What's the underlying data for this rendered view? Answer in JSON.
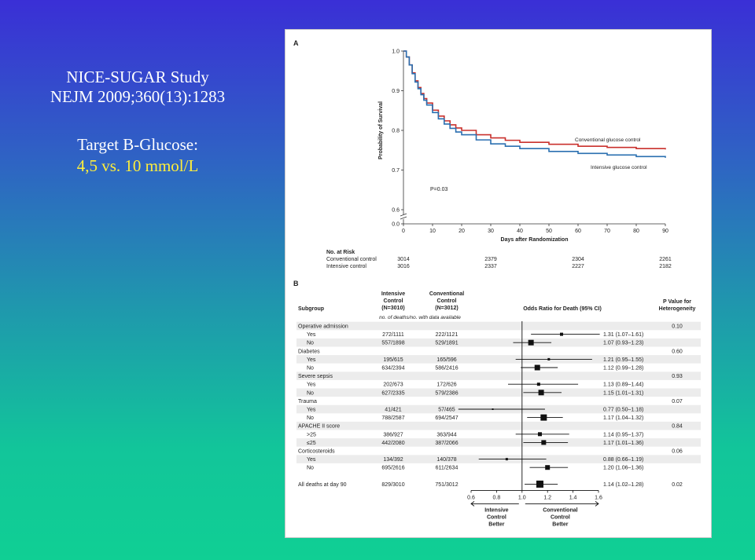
{
  "slide": {
    "title_line1": "NICE-SUGAR Study",
    "title_line2": "NEJM 2009;360(13):1283",
    "target_line1": "Target B-Glucose:",
    "target_line2": "4,5 vs. 10 mmol/L"
  },
  "colors": {
    "conventional": "#c9302c",
    "intensive": "#2a6fb0",
    "text_yellow": "#ffef3a"
  },
  "chart_data": [
    {
      "type": "line",
      "panel_label": "A",
      "ylabel": "Probability of Survival",
      "xlabel": "Days after Randomization",
      "xlim": [
        0,
        90
      ],
      "ylim": [
        0.6,
        1.0
      ],
      "y_axis_break": true,
      "yticks": [
        "0.0",
        "0.6",
        "0.7",
        "0.8",
        "0.9",
        "1.0"
      ],
      "xticks": [
        0,
        10,
        20,
        30,
        40,
        50,
        60,
        70,
        80,
        90
      ],
      "annotation": "P=0.03",
      "series": [
        {
          "name": "Conventional glucose control",
          "x": [
            0,
            1,
            2,
            3,
            4,
            5,
            6,
            7,
            8,
            10,
            12,
            14,
            16,
            18,
            20,
            25,
            30,
            35,
            40,
            50,
            60,
            70,
            80,
            90
          ],
          "y": [
            1.0,
            0.985,
            0.965,
            0.945,
            0.925,
            0.908,
            0.893,
            0.88,
            0.869,
            0.851,
            0.836,
            0.824,
            0.814,
            0.806,
            0.8,
            0.789,
            0.781,
            0.775,
            0.77,
            0.765,
            0.76,
            0.757,
            0.754,
            0.752
          ]
        },
        {
          "name": "Intensive glucose control",
          "x": [
            0,
            1,
            2,
            3,
            4,
            5,
            6,
            7,
            8,
            10,
            12,
            14,
            16,
            18,
            20,
            25,
            30,
            35,
            40,
            50,
            60,
            70,
            80,
            90
          ],
          "y": [
            1.0,
            0.985,
            0.965,
            0.943,
            0.922,
            0.905,
            0.89,
            0.876,
            0.864,
            0.845,
            0.829,
            0.816,
            0.805,
            0.796,
            0.789,
            0.776,
            0.766,
            0.76,
            0.754,
            0.747,
            0.742,
            0.738,
            0.734,
            0.731
          ]
        }
      ],
      "at_risk": {
        "title": "No. at Risk",
        "timepoints": [
          0,
          30,
          60,
          90
        ],
        "rows": [
          {
            "label": "Conventional control",
            "values": [
              "3014",
              "2379",
              "2304",
              "2261"
            ]
          },
          {
            "label": "Intensive control",
            "values": [
              "3016",
              "2337",
              "2227",
              "2182"
            ]
          }
        ]
      }
    },
    {
      "type": "forest",
      "panel_label": "B",
      "headers": {
        "subgroup": "Subgroup",
        "intensive": [
          "Intensive",
          "Control",
          "(N=3010)"
        ],
        "conventional": [
          "Conventional",
          "Control",
          "(N=3012)"
        ],
        "subheader": "no. of deaths/no. with data available",
        "or": "Odds Ratio for Death (95% CI)",
        "p": [
          "P Value for",
          "Heterogeneity"
        ]
      },
      "xlim": [
        0.6,
        1.6
      ],
      "xticks": [
        "0.6",
        "0.8",
        "1.0",
        "1.2",
        "1.4",
        "1.6"
      ],
      "footer_left": [
        "Intensive",
        "Control",
        "Better"
      ],
      "footer_right": [
        "Conventional",
        "Control",
        "Better"
      ],
      "rows": [
        {
          "kind": "group",
          "label": "Operative admission",
          "p": "0.10"
        },
        {
          "kind": "item",
          "label": "Yes",
          "intensive": "272/1111",
          "conventional": "222/1121",
          "or": 1.31,
          "lo": 1.07,
          "hi": 1.61,
          "ci": "1.31 (1.07–1.61)",
          "size": 4
        },
        {
          "kind": "item",
          "label": "No",
          "intensive": "557/1898",
          "conventional": "529/1891",
          "or": 1.07,
          "lo": 0.93,
          "hi": 1.23,
          "ci": "1.07 (0.93–1.23)",
          "size": 7
        },
        {
          "kind": "group",
          "label": "Diabetes",
          "p": "0.60"
        },
        {
          "kind": "item",
          "label": "Yes",
          "intensive": "195/615",
          "conventional": "165/596",
          "or": 1.21,
          "lo": 0.95,
          "hi": 1.55,
          "ci": "1.21 (0.95–1.55)",
          "size": 3
        },
        {
          "kind": "item",
          "label": "No",
          "intensive": "634/2394",
          "conventional": "586/2416",
          "or": 1.12,
          "lo": 0.99,
          "hi": 1.28,
          "ci": "1.12 (0.99–1.28)",
          "size": 7
        },
        {
          "kind": "group",
          "label": "Severe sepsis",
          "p": "0.93"
        },
        {
          "kind": "item",
          "label": "Yes",
          "intensive": "202/673",
          "conventional": "172/626",
          "or": 1.13,
          "lo": 0.89,
          "hi": 1.44,
          "ci": "1.13 (0.89–1.44)",
          "size": 4
        },
        {
          "kind": "item",
          "label": "No",
          "intensive": "627/2335",
          "conventional": "579/2386",
          "or": 1.15,
          "lo": 1.01,
          "hi": 1.31,
          "ci": "1.15 (1.01–1.31)",
          "size": 7
        },
        {
          "kind": "group",
          "label": "Trauma",
          "p": "0.07"
        },
        {
          "kind": "item",
          "label": "Yes",
          "intensive": "41/421",
          "conventional": "57/465",
          "or": 0.77,
          "lo": 0.5,
          "hi": 1.18,
          "ci": "0.77 (0.50–1.18)",
          "size": 2
        },
        {
          "kind": "item",
          "label": "No",
          "intensive": "788/2587",
          "conventional": "694/2547",
          "or": 1.17,
          "lo": 1.04,
          "hi": 1.32,
          "ci": "1.17 (1.04–1.32)",
          "size": 8
        },
        {
          "kind": "group",
          "label": "APACHE II score",
          "p": "0.84"
        },
        {
          "kind": "item",
          "label": ">25",
          "intensive": "386/927",
          "conventional": "363/944",
          "or": 1.14,
          "lo": 0.95,
          "hi": 1.37,
          "ci": "1.14 (0.95–1.37)",
          "size": 5
        },
        {
          "kind": "item",
          "label": "≤25",
          "intensive": "442/2080",
          "conventional": "387/2066",
          "or": 1.17,
          "lo": 1.01,
          "hi": 1.36,
          "ci": "1.17 (1.01–1.36)",
          "size": 6
        },
        {
          "kind": "group",
          "label": "Corticosteroids",
          "p": "0.06"
        },
        {
          "kind": "item",
          "label": "Yes",
          "intensive": "134/392",
          "conventional": "140/378",
          "or": 0.88,
          "lo": 0.66,
          "hi": 1.19,
          "ci": "0.88 (0.66–1.19)",
          "size": 3
        },
        {
          "kind": "item",
          "label": "No",
          "intensive": "695/2616",
          "conventional": "611/2634",
          "or": 1.2,
          "lo": 1.06,
          "hi": 1.36,
          "ci": "1.20 (1.06–1.36)",
          "size": 6
        },
        {
          "kind": "gap"
        },
        {
          "kind": "total",
          "label": "All deaths at day 90",
          "intensive": "829/3010",
          "conventional": "751/3012",
          "or": 1.14,
          "lo": 1.02,
          "hi": 1.28,
          "ci": "1.14 (1.02–1.28)",
          "p": "0.02",
          "size": 9
        }
      ]
    }
  ]
}
